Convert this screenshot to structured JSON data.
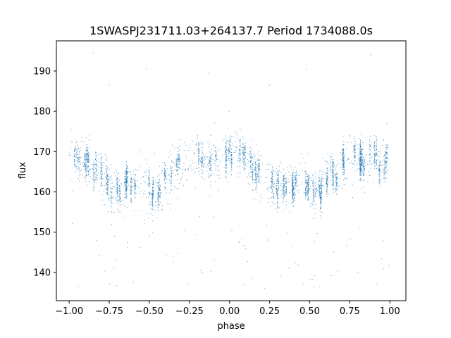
{
  "chart_data": {
    "type": "scatter",
    "title": "1SWASPJ231711.03+264137.7 Period 1734088.0s",
    "xlabel": "phase",
    "ylabel": "flux",
    "xlim": [
      -1.08,
      1.1
    ],
    "ylim": [
      133,
      197.5
    ],
    "xticks": [
      -1.0,
      -0.75,
      -0.5,
      -0.25,
      0.0,
      0.25,
      0.5,
      0.75,
      1.0
    ],
    "xtick_labels": [
      "−1.00",
      "−0.75",
      "−0.50",
      "−0.25",
      "0.00",
      "0.25",
      "0.50",
      "0.75",
      "1.00"
    ],
    "yticks": [
      140,
      150,
      160,
      170,
      180,
      190
    ],
    "ytick_labels": [
      "140",
      "150",
      "160",
      "170",
      "180",
      "190"
    ],
    "grid": false,
    "marker_color": "#1f77b4",
    "series": [
      {
        "profile_x": [
          0.0,
          0.05,
          0.1,
          0.15,
          0.2,
          0.25,
          0.3,
          0.35,
          0.4,
          0.45,
          0.5,
          0.55,
          0.6,
          0.65,
          0.7,
          0.75,
          0.8,
          0.85,
          0.9,
          0.95,
          1.0
        ],
        "profile_y": [
          170,
          169,
          168,
          166,
          164,
          162,
          160,
          161,
          162,
          163,
          161,
          160,
          163,
          165,
          167,
          168,
          168,
          167,
          168,
          168,
          170
        ],
        "scatter_spread": 4.5,
        "outliers": [
          [
            -0.85,
            194.5
          ],
          [
            -0.75,
            186.5
          ],
          [
            -0.52,
            190.5
          ],
          [
            -0.13,
            189.5
          ],
          [
            0.25,
            186.5
          ],
          [
            0.48,
            190.5
          ],
          [
            0.88,
            194
          ],
          [
            -0.95,
            137
          ],
          [
            -0.6,
            137.5
          ],
          [
            -0.18,
            140.5
          ],
          [
            0.22,
            136
          ],
          [
            0.37,
            141
          ],
          [
            0.46,
            137
          ],
          [
            0.8,
            140
          ],
          [
            0.92,
            137
          ],
          [
            -0.72,
            141
          ],
          [
            -0.48,
            150
          ],
          [
            0.1,
            146
          ],
          [
            0.65,
            145
          ],
          [
            -0.35,
            144
          ]
        ]
      }
    ]
  }
}
